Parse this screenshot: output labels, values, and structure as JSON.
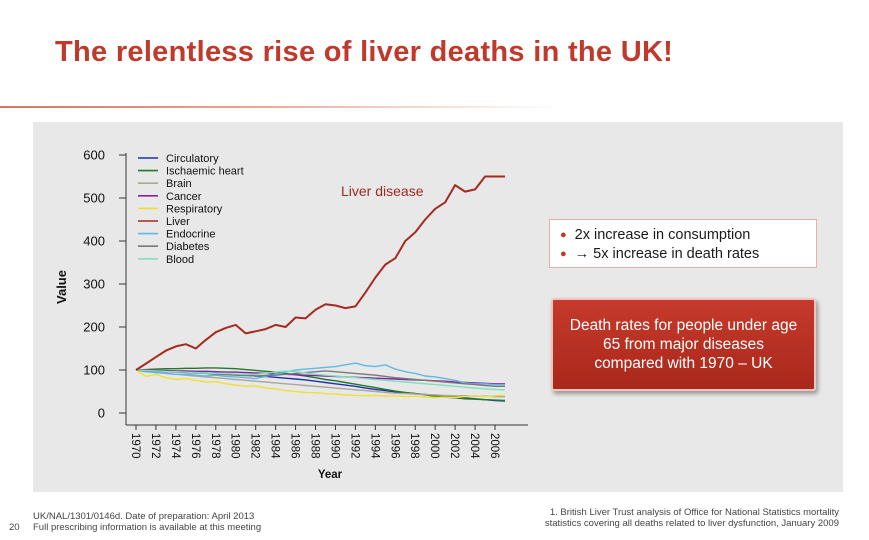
{
  "slide": {
    "title": "The relentless rise of liver deaths in the UK!",
    "accent_color": "#c0392b"
  },
  "callouts": {
    "bullets": [
      "2x increase in consumption",
      "→ 5x increase in death rates"
    ],
    "red_box_text": "Death rates for people under age 65 from major diseases compared with 1970 – UK"
  },
  "footer": {
    "code_line": "UK/NAL/1301/0146d. Date of preparation: April 2013",
    "prescribing_line": "Full prescribing information is available at this meeting",
    "page_number": "20",
    "reference_line1": "1. British Liver Trust analysis of Office for National Statistics mortality",
    "reference_line2": "statistics covering all deaths related to liver dysfunction, January 2009"
  },
  "chart_data": {
    "type": "line",
    "xlabel": "Year",
    "ylabel": "Value",
    "ylim": [
      0,
      600
    ],
    "yticks": [
      0,
      100,
      200,
      300,
      400,
      500,
      600
    ],
    "xtick_labels": [
      "1970",
      "1972",
      "1974",
      "1976",
      "1978",
      "1980",
      "1982",
      "1984",
      "1986",
      "1988",
      "1990",
      "1992",
      "1994",
      "1996",
      "1998",
      "2000",
      "2002",
      "2004",
      "2006"
    ],
    "grid": false,
    "legend_position": "top-left",
    "annotation": "Liver disease",
    "x": [
      1970,
      1971,
      1972,
      1973,
      1974,
      1975,
      1976,
      1977,
      1978,
      1979,
      1980,
      1981,
      1982,
      1983,
      1984,
      1985,
      1986,
      1987,
      1988,
      1989,
      1990,
      1991,
      1992,
      1993,
      1994,
      1995,
      1996,
      1997,
      1998,
      1999,
      2000,
      2001,
      2002,
      2003,
      2004,
      2005,
      2006,
      2007
    ],
    "series": [
      {
        "name": "Circulatory",
        "color": "#1f2fb0",
        "values": [
          100,
          99,
          98,
          97,
          96,
          95,
          94,
          93,
          92,
          91,
          89,
          88,
          86,
          85,
          83,
          81,
          79,
          77,
          74,
          71,
          68,
          65,
          62,
          58,
          55,
          52,
          49,
          47,
          45,
          43,
          41,
          39,
          37,
          35,
          33,
          31,
          29,
          28
        ]
      },
      {
        "name": "Ischaemic heart",
        "color": "#1f7a2a",
        "values": [
          100,
          101,
          102,
          103,
          103,
          104,
          104,
          105,
          105,
          104,
          103,
          101,
          99,
          97,
          95,
          92,
          89,
          86,
          82,
          78,
          75,
          71,
          67,
          63,
          59,
          55,
          51,
          48,
          45,
          42,
          39,
          37,
          35,
          33,
          32,
          31,
          30,
          29
        ]
      },
      {
        "name": "Brain",
        "color": "#a8a898",
        "values": [
          100,
          97,
          94,
          92,
          90,
          88,
          86,
          84,
          82,
          80,
          78,
          76,
          74,
          72,
          70,
          68,
          66,
          64,
          62,
          60,
          58,
          56,
          54,
          52,
          50,
          48,
          46,
          45,
          44,
          43,
          42,
          41,
          40,
          40,
          39,
          39,
          38,
          38
        ]
      },
      {
        "name": "Cancer",
        "color": "#8a1fa0",
        "values": [
          100,
          100,
          99,
          99,
          98,
          98,
          97,
          97,
          96,
          95,
          95,
          94,
          93,
          92,
          91,
          90,
          89,
          88,
          87,
          86,
          85,
          84,
          83,
          82,
          81,
          80,
          79,
          78,
          77,
          76,
          75,
          74,
          72,
          71,
          70,
          69,
          68,
          68
        ]
      },
      {
        "name": "Respiratory",
        "color": "#f0e130",
        "values": [
          100,
          85,
          90,
          82,
          78,
          80,
          76,
          72,
          73,
          68,
          65,
          62,
          63,
          58,
          56,
          52,
          50,
          48,
          47,
          45,
          44,
          42,
          41,
          40,
          41,
          39,
          40,
          38,
          39,
          37,
          36,
          37,
          36,
          38,
          40,
          38,
          40,
          42
        ]
      },
      {
        "name": "Liver",
        "color": "#a52a1f",
        "values": [
          100,
          115,
          130,
          145,
          155,
          160,
          150,
          170,
          188,
          198,
          205,
          185,
          190,
          195,
          205,
          200,
          222,
          220,
          240,
          253,
          250,
          244,
          248,
          280,
          315,
          345,
          360,
          400,
          420,
          450,
          475,
          490,
          530,
          515,
          520,
          550,
          550,
          550
        ]
      },
      {
        "name": "Endocrine",
        "color": "#60b8e8",
        "values": [
          100,
          96,
          94,
          92,
          90,
          90,
          88,
          86,
          88,
          85,
          84,
          82,
          80,
          85,
          90,
          95,
          100,
          102,
          104,
          106,
          108,
          112,
          116,
          110,
          108,
          112,
          102,
          96,
          92,
          86,
          84,
          80,
          76,
          70,
          68,
          68,
          66,
          66
        ]
      },
      {
        "name": "Diabetes",
        "color": "#7a7a7a",
        "values": [
          100,
          98,
          97,
          96,
          95,
          94,
          93,
          92,
          90,
          89,
          88,
          87,
          86,
          87,
          88,
          90,
          92,
          94,
          96,
          98,
          96,
          94,
          92,
          90,
          88,
          85,
          82,
          80,
          78,
          76,
          74,
          72,
          70,
          68,
          66,
          64,
          62,
          62
        ]
      },
      {
        "name": "Blood",
        "color": "#7ee0c0",
        "values": [
          100,
          99,
          98,
          97,
          96,
          95,
          94,
          93,
          92,
          92,
          91,
          90,
          90,
          92,
          95,
          98,
          96,
          93,
          90,
          88,
          86,
          84,
          82,
          80,
          78,
          76,
          74,
          72,
          70,
          68,
          66,
          64,
          62,
          60,
          58,
          56,
          55,
          54
        ]
      }
    ]
  }
}
